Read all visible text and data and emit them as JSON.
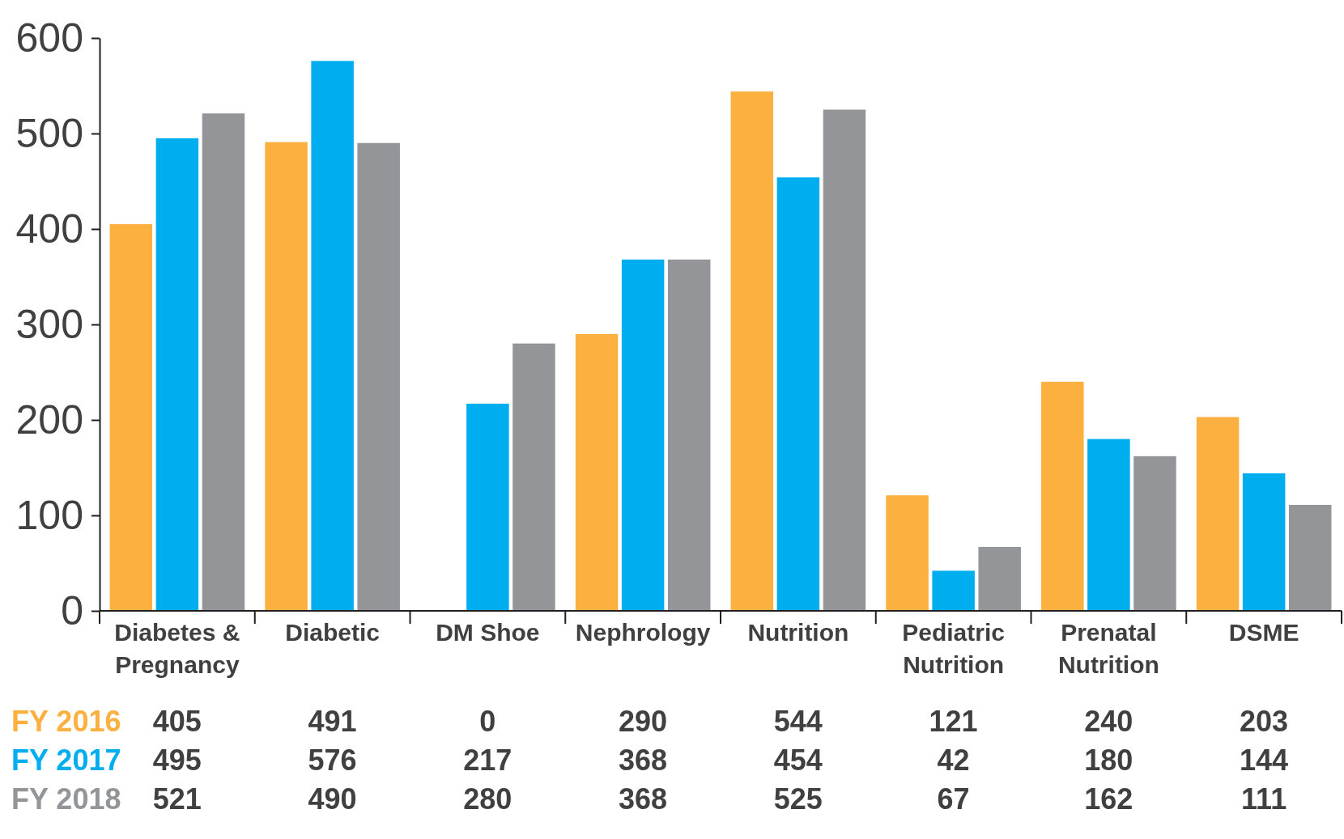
{
  "chart_data": {
    "type": "bar",
    "categories": [
      "Diabetes &\nPregnancy",
      "Diabetic",
      "DM Shoe",
      "Nephrology",
      "Nutrition",
      "Pediatric\nNutrition",
      "Prenatal\nNutrition",
      "DSME"
    ],
    "series": [
      {
        "name": "FY 2016",
        "color": "#fbb040",
        "values": [
          405,
          491,
          0,
          290,
          544,
          121,
          240,
          203
        ]
      },
      {
        "name": "FY 2017",
        "color": "#00aeef",
        "values": [
          495,
          576,
          217,
          368,
          454,
          42,
          180,
          144
        ]
      },
      {
        "name": "FY 2018",
        "color": "#939598",
        "values": [
          521,
          490,
          280,
          368,
          525,
          67,
          162,
          111
        ]
      }
    ],
    "ylim": [
      0,
      600
    ],
    "yticks": [
      0,
      100,
      200,
      300,
      400,
      500,
      600
    ],
    "data_labels": true,
    "grid": false
  }
}
